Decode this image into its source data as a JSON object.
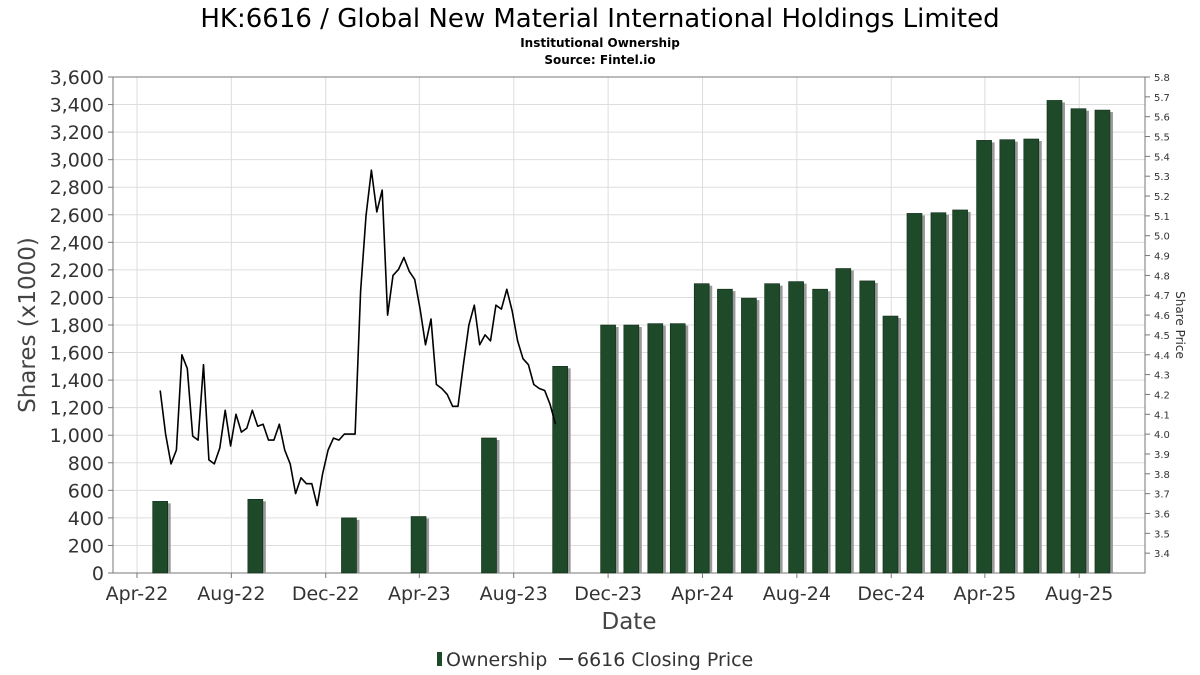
{
  "chart_data": {
    "type": "bar+line",
    "title": "HK:6616 / Global New Material International Holdings Limited",
    "subtitle": "Institutional Ownership",
    "source": "Source: Fintel.io",
    "xlabel": "Date",
    "ylabel": "Shares (x1000)",
    "y2label": "Share Price",
    "ylim": [
      0,
      3600
    ],
    "y2lim": [
      3.3,
      5.8
    ],
    "y_ticks": [
      "0",
      "200",
      "400",
      "600",
      "800",
      "1,000",
      "1,200",
      "1,400",
      "1,600",
      "1,800",
      "2,000",
      "2,200",
      "2,400",
      "2,600",
      "2,800",
      "3,000",
      "3,200",
      "3,400",
      "3,600"
    ],
    "y2_ticks": [
      "3.4",
      "3.5",
      "3.6",
      "3.7",
      "3.8",
      "3.9",
      "4.0",
      "4.1",
      "4.2",
      "4.3",
      "4.4",
      "4.5",
      "4.6",
      "4.7",
      "4.8",
      "4.9",
      "5.0",
      "5.1",
      "5.2",
      "5.3",
      "5.4",
      "5.5",
      "5.6",
      "5.7",
      "5.8"
    ],
    "x_ticks": [
      {
        "label": "Apr-22",
        "date": "2022-04-01"
      },
      {
        "label": "Aug-22",
        "date": "2022-08-01"
      },
      {
        "label": "Dec-22",
        "date": "2022-12-01"
      },
      {
        "label": "Apr-23",
        "date": "2023-04-01"
      },
      {
        "label": "Aug-23",
        "date": "2023-08-01"
      },
      {
        "label": "Dec-23",
        "date": "2023-12-01"
      },
      {
        "label": "Apr-24",
        "date": "2024-04-01"
      },
      {
        "label": "Aug-24",
        "date": "2024-08-01"
      },
      {
        "label": "Dec-24",
        "date": "2024-12-01"
      },
      {
        "label": "Apr-25",
        "date": "2025-04-01"
      },
      {
        "label": "Aug-25",
        "date": "2025-08-01"
      }
    ],
    "x_range": [
      "2022-03-01",
      "2025-10-25"
    ],
    "colors": {
      "bar": "#1e4a2a",
      "bar_shadow": "#999999",
      "line": "#000000",
      "grid": "#dddddd"
    },
    "legend": {
      "placement": "bottom-center",
      "entries": [
        "Ownership",
        "6616 Closing Price"
      ]
    },
    "series": [
      {
        "name": "Ownership",
        "type": "bar",
        "points": [
          [
            "2022-05-01",
            520
          ],
          [
            "2022-09-01",
            535
          ],
          [
            "2022-12-31",
            400
          ],
          [
            "2023-03-31",
            410
          ],
          [
            "2023-06-30",
            980
          ],
          [
            "2023-09-30",
            1500
          ],
          [
            "2023-12-01",
            1800
          ],
          [
            "2023-12-31",
            1800
          ],
          [
            "2024-01-31",
            1810
          ],
          [
            "2024-02-29",
            1810
          ],
          [
            "2024-03-31",
            2100
          ],
          [
            "2024-04-30",
            2060
          ],
          [
            "2024-05-31",
            1995
          ],
          [
            "2024-06-30",
            2100
          ],
          [
            "2024-07-31",
            2115
          ],
          [
            "2024-08-31",
            2060
          ],
          [
            "2024-09-30",
            2210
          ],
          [
            "2024-10-31",
            2120
          ],
          [
            "2024-11-30",
            1865
          ],
          [
            "2024-12-31",
            2610
          ],
          [
            "2025-01-31",
            2615
          ],
          [
            "2025-02-28",
            2635
          ],
          [
            "2025-03-31",
            3140
          ],
          [
            "2025-04-30",
            3145
          ],
          [
            "2025-05-31",
            3150
          ],
          [
            "2025-06-30",
            3430
          ],
          [
            "2025-07-31",
            3370
          ],
          [
            "2025-08-31",
            3360
          ]
        ]
      },
      {
        "name": "6616 Closing Price",
        "type": "line",
        "points": [
          [
            "2022-05-01",
            4.22
          ],
          [
            "2022-05-08",
            4.0
          ],
          [
            "2022-05-15",
            3.85
          ],
          [
            "2022-05-22",
            3.92
          ],
          [
            "2022-05-29",
            4.4
          ],
          [
            "2022-06-05",
            4.33
          ],
          [
            "2022-06-12",
            3.99
          ],
          [
            "2022-06-19",
            3.97
          ],
          [
            "2022-06-26",
            4.35
          ],
          [
            "2022-07-03",
            3.87
          ],
          [
            "2022-07-10",
            3.85
          ],
          [
            "2022-07-17",
            3.93
          ],
          [
            "2022-07-24",
            4.12
          ],
          [
            "2022-07-31",
            3.94
          ],
          [
            "2022-08-07",
            4.1
          ],
          [
            "2022-08-14",
            4.01
          ],
          [
            "2022-08-21",
            4.03
          ],
          [
            "2022-08-28",
            4.12
          ],
          [
            "2022-09-04",
            4.04
          ],
          [
            "2022-09-11",
            4.05
          ],
          [
            "2022-09-18",
            3.97
          ],
          [
            "2022-09-25",
            3.97
          ],
          [
            "2022-10-02",
            4.05
          ],
          [
            "2022-10-09",
            3.92
          ],
          [
            "2022-10-16",
            3.85
          ],
          [
            "2022-10-23",
            3.7
          ],
          [
            "2022-10-30",
            3.78
          ],
          [
            "2022-11-06",
            3.75
          ],
          [
            "2022-11-13",
            3.75
          ],
          [
            "2022-11-20",
            3.64
          ],
          [
            "2022-11-27",
            3.8
          ],
          [
            "2022-12-04",
            3.92
          ],
          [
            "2022-12-11",
            3.98
          ],
          [
            "2022-12-18",
            3.97
          ],
          [
            "2022-12-25",
            4.0
          ],
          [
            "2023-01-01",
            4.0
          ],
          [
            "2023-01-08",
            4.0
          ],
          [
            "2023-01-15",
            4.72
          ],
          [
            "2023-01-22",
            5.1
          ],
          [
            "2023-01-29",
            5.33
          ],
          [
            "2023-02-05",
            5.12
          ],
          [
            "2023-02-12",
            5.23
          ],
          [
            "2023-02-19",
            4.6
          ],
          [
            "2023-02-26",
            4.8
          ],
          [
            "2023-03-05",
            4.83
          ],
          [
            "2023-03-12",
            4.89
          ],
          [
            "2023-03-19",
            4.82
          ],
          [
            "2023-03-26",
            4.78
          ],
          [
            "2023-04-02",
            4.63
          ],
          [
            "2023-04-09",
            4.45
          ],
          [
            "2023-04-16",
            4.58
          ],
          [
            "2023-04-23",
            4.25
          ],
          [
            "2023-04-30",
            4.23
          ],
          [
            "2023-05-07",
            4.2
          ],
          [
            "2023-05-14",
            4.14
          ],
          [
            "2023-05-21",
            4.14
          ],
          [
            "2023-05-28",
            4.35
          ],
          [
            "2023-06-04",
            4.55
          ],
          [
            "2023-06-11",
            4.65
          ],
          [
            "2023-06-18",
            4.45
          ],
          [
            "2023-06-25",
            4.5
          ],
          [
            "2023-07-02",
            4.47
          ],
          [
            "2023-07-09",
            4.65
          ],
          [
            "2023-07-16",
            4.63
          ],
          [
            "2023-07-23",
            4.73
          ],
          [
            "2023-07-30",
            4.62
          ],
          [
            "2023-08-06",
            4.47
          ],
          [
            "2023-08-13",
            4.38
          ],
          [
            "2023-08-20",
            4.35
          ],
          [
            "2023-08-27",
            4.25
          ],
          [
            "2023-09-03",
            4.23
          ],
          [
            "2023-09-10",
            4.22
          ],
          [
            "2023-09-17",
            4.15
          ],
          [
            "2023-09-24",
            4.05
          ]
        ]
      }
    ]
  }
}
